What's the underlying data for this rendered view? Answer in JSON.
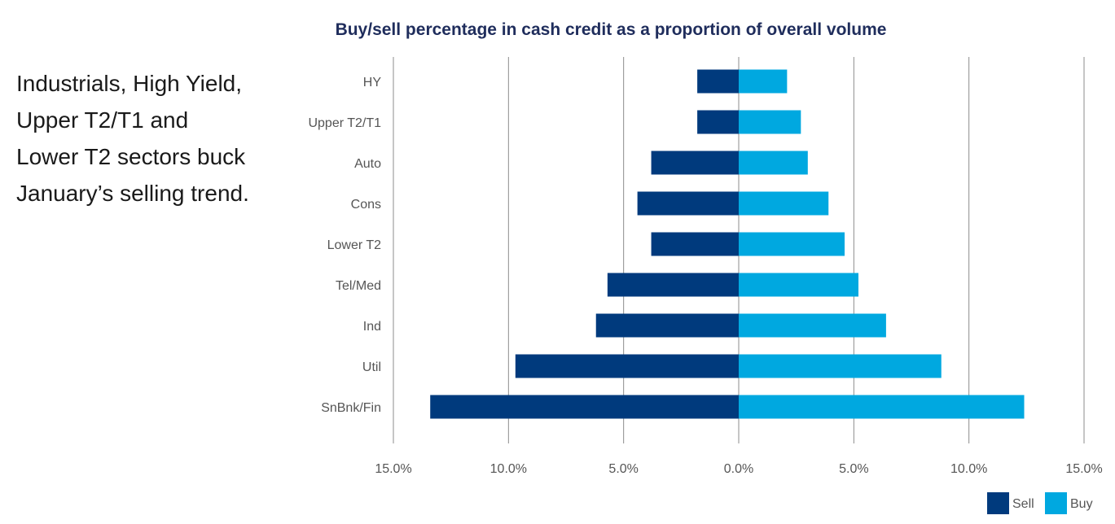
{
  "side_text": "Industrials, High Yield,\nUpper T2/T1 and\nLower T2 sectors buck\nJanuary’s selling trend.",
  "chart_data": {
    "type": "bar",
    "orientation": "horizontal-diverging",
    "title": "Buy/sell percentage in cash credit as a proportion of overall volume",
    "categories": [
      "HY",
      "Upper T2/T1",
      "Auto",
      "Cons",
      "Lower T2",
      "Tel/Med",
      "Ind",
      "Util",
      "SnBnk/Fin"
    ],
    "series": [
      {
        "name": "Sell",
        "color": "#003a7d",
        "values": [
          -1.8,
          -1.8,
          -3.8,
          -4.4,
          -3.8,
          -5.7,
          -6.2,
          -9.7,
          -13.4
        ]
      },
      {
        "name": "Buy",
        "color": "#00a8e0",
        "values": [
          2.1,
          2.7,
          3.0,
          3.9,
          4.6,
          5.2,
          6.4,
          8.8,
          12.4
        ]
      }
    ],
    "xlim": [
      -15,
      15
    ],
    "x_ticks": [
      -15,
      -10,
      -5,
      0,
      5,
      10,
      15
    ],
    "x_tick_labels": [
      "15.0%",
      "10.0%",
      "5.0%",
      "0.0%",
      "5.0%",
      "10.0%",
      "15.0%"
    ],
    "grid": "vertical",
    "legend_position": "bottom-right"
  }
}
